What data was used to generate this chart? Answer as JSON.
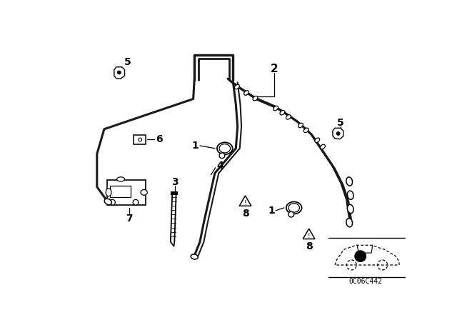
{
  "bg_color": "#ffffff",
  "fig_width": 6.4,
  "fig_height": 4.48,
  "dpi": 100,
  "watermark": "0C06C442",
  "tube_color": "#1a1a1a",
  "line_color": "#000000"
}
